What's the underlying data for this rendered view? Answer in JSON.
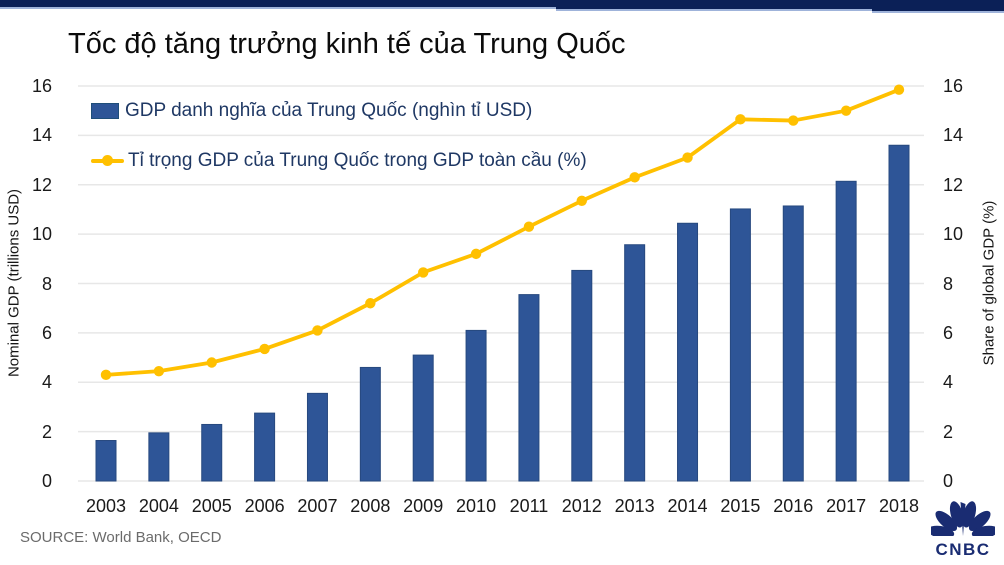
{
  "page": {
    "title": "Tốc độ tăng trưởng kinh tế của Trung Quốc",
    "source": "SOURCE: World Bank, OECD",
    "brand": "CNBC"
  },
  "colors": {
    "bar": "#2E5597",
    "bar_border": "#27497F",
    "line": "#FFC000",
    "legend_text": "#1F3864",
    "top_bar": "#0B2057",
    "top_bar_underline": "#9FB3DA",
    "gridline": "#E7E7E7",
    "tick_text": "#1a1a1a",
    "source_text": "#6b6b6b",
    "logo": "#1A2C72"
  },
  "chart_data": {
    "type": "combo",
    "title": "Tốc độ tăng trưởng kinh tế của Trung Quốc",
    "categories": [
      "2003",
      "2004",
      "2005",
      "2006",
      "2007",
      "2008",
      "2009",
      "2010",
      "2011",
      "2012",
      "2013",
      "2014",
      "2015",
      "2016",
      "2017",
      "2018"
    ],
    "series": [
      {
        "name": "GDP danh nghĩa của Trung Quốc (nghìn tỉ USD)",
        "type": "bar",
        "axis": "left",
        "color": "#2E5597",
        "values": [
          1.64,
          1.95,
          2.29,
          2.75,
          3.55,
          4.6,
          5.1,
          6.1,
          7.55,
          8.53,
          9.57,
          10.44,
          11.02,
          11.14,
          12.14,
          13.6
        ]
      },
      {
        "name": "Tỉ trọng GDP của Trung Quốc trong GDP toàn cầu (%)",
        "type": "line",
        "axis": "right",
        "color": "#FFC000",
        "values": [
          4.3,
          4.45,
          4.8,
          5.35,
          6.1,
          7.2,
          8.45,
          9.2,
          10.3,
          11.35,
          12.3,
          13.1,
          14.65,
          14.6,
          15.0,
          15.85
        ]
      }
    ],
    "left_axis": {
      "label": "Nominal GDP (trillions USD)",
      "min": 0,
      "max": 16,
      "step": 2
    },
    "right_axis": {
      "label": "Share of global GDP (%)",
      "min": 0,
      "max": 16,
      "step": 2
    },
    "grid": true,
    "legend_position": "top-left"
  }
}
